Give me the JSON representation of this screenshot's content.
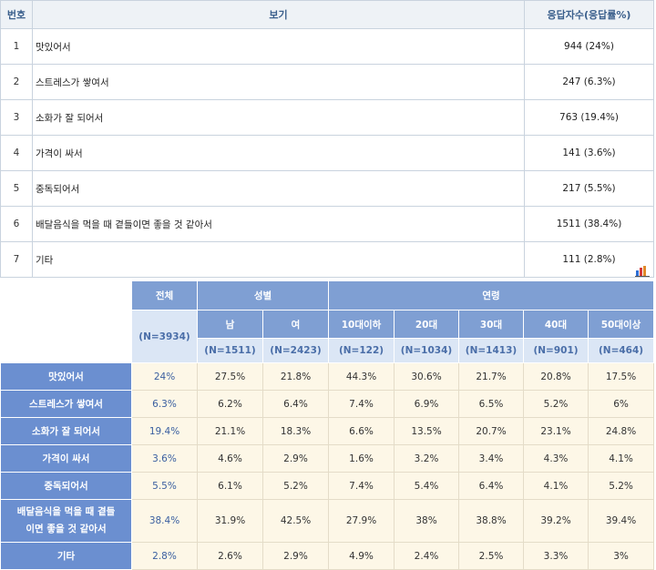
{
  "question_table": {
    "headers": {
      "no": "번호",
      "option": "보기",
      "responses": "응답자수(응답률%)"
    },
    "rows": [
      {
        "no": "1",
        "option": "맛있어서",
        "responses": "944 (24%)"
      },
      {
        "no": "2",
        "option": "스트레스가 쌓여서",
        "responses": "247 (6.3%)"
      },
      {
        "no": "3",
        "option": "소화가 잘 되어서",
        "responses": "763 (19.4%)"
      },
      {
        "no": "4",
        "option": "가격이 싸서",
        "responses": "141 (3.6%)"
      },
      {
        "no": "5",
        "option": "중독되어서",
        "responses": "217 (5.5%)"
      },
      {
        "no": "6",
        "option": "배달음식을 먹을 때 곁들이면 좋을 것 같아서",
        "responses": "1511 (38.4%)"
      },
      {
        "no": "7",
        "option": "기타",
        "responses": "111 (2.8%)"
      }
    ]
  },
  "chart_icon": "bar-chart-icon",
  "cross_table": {
    "group_headers": {
      "total": "전체",
      "gender": "성별",
      "age": "연령"
    },
    "total_n": "(N=3934)",
    "columns": [
      {
        "label": "남",
        "n": "(N=1511)"
      },
      {
        "label": "여",
        "n": "(N=2423)"
      },
      {
        "label": "10대이하",
        "n": "(N=122)"
      },
      {
        "label": "20대",
        "n": "(N=1034)"
      },
      {
        "label": "30대",
        "n": "(N=1413)"
      },
      {
        "label": "40대",
        "n": "(N=901)"
      },
      {
        "label": "50대이상",
        "n": "(N=464)"
      }
    ],
    "rows": [
      {
        "label": "맛있어서",
        "total": "24%",
        "values": [
          "27.5%",
          "21.8%",
          "44.3%",
          "30.6%",
          "21.7%",
          "20.8%",
          "17.5%"
        ]
      },
      {
        "label": "스트레스가 쌓여서",
        "total": "6.3%",
        "values": [
          "6.2%",
          "6.4%",
          "7.4%",
          "6.9%",
          "6.5%",
          "5.2%",
          "6%"
        ]
      },
      {
        "label": "소화가 잘 되어서",
        "total": "19.4%",
        "values": [
          "21.1%",
          "18.3%",
          "6.6%",
          "13.5%",
          "20.7%",
          "23.1%",
          "24.8%"
        ]
      },
      {
        "label": "가격이 싸서",
        "total": "3.6%",
        "values": [
          "4.6%",
          "2.9%",
          "1.6%",
          "3.2%",
          "3.4%",
          "4.3%",
          "4.1%"
        ]
      },
      {
        "label": "중독되어서",
        "total": "5.5%",
        "values": [
          "6.1%",
          "5.2%",
          "7.4%",
          "5.4%",
          "6.4%",
          "4.1%",
          "5.2%"
        ]
      },
      {
        "label": "배달음식을 먹을 때 곁들이면 좋을 것 같아서",
        "label_line1": "배달음식을 먹을 때 곁들",
        "label_line2": "이면 좋을 것 같아서",
        "total": "38.4%",
        "values": [
          "31.9%",
          "42.5%",
          "27.9%",
          "38%",
          "38.8%",
          "39.2%",
          "39.4%"
        ]
      },
      {
        "label": "기타",
        "total": "2.8%",
        "values": [
          "2.6%",
          "2.9%",
          "4.9%",
          "2.4%",
          "2.5%",
          "3.3%",
          "3%"
        ]
      }
    ]
  },
  "colors": {
    "header_blue": "#7f9fd3",
    "row_header_blue": "#6b8fd0",
    "cell_cream": "#fdf7e7",
    "n_row": "#dbe6f5"
  }
}
